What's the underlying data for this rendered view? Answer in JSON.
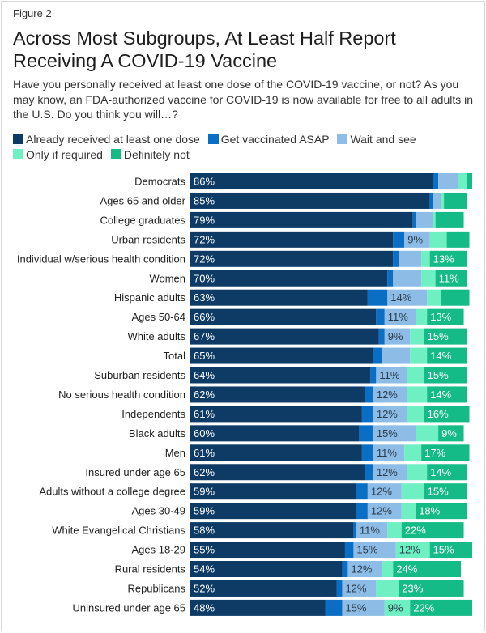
{
  "figure_label": "Figure 2",
  "chart_data": {
    "type": "bar",
    "orientation": "horizontal",
    "stacked": true,
    "title": "Across Most Subgroups, At Least Half Report Receiving A COVID-19 Vaccine",
    "subtitle": "Have you personally received at least one dose of the COVID-19 vaccine, or not? As you may know, an FDA-authorized vaccine for COVID-19 is now available for free to all adults in the U.S. Do you think you will…?",
    "legend_placement": "top",
    "xlim": [
      0,
      100
    ],
    "grid": false,
    "categories": [
      "Democrats",
      "Ages 65 and older",
      "College graduates",
      "Urban residents",
      "Individual w/serious health condition",
      "Women",
      "Hispanic adults",
      "Ages 50-64",
      "White adults",
      "Total",
      "Suburban residents",
      "No serious health condition",
      "Independents",
      "Black adults",
      "Men",
      "Insured under age 65",
      "Adults without a college degree",
      "Ages 30-49",
      "White Evangelical Christians",
      "Ages 18-29",
      "Rural residents",
      "Republicans",
      "Uninsured under age 65"
    ],
    "series": [
      {
        "name": "Already received at least one dose",
        "color": "#0d3b66",
        "values": [
          86,
          85,
          79,
          72,
          72,
          70,
          63,
          66,
          67,
          65,
          64,
          62,
          61,
          60,
          61,
          62,
          59,
          59,
          58,
          55,
          54,
          52,
          48
        ],
        "labels": [
          "86%",
          "85%",
          "79%",
          "72%",
          "72%",
          "70%",
          "63%",
          "66%",
          "67%",
          "65%",
          "64%",
          "62%",
          "61%",
          "60%",
          "61%",
          "62%",
          "59%",
          "59%",
          "58%",
          "55%",
          "54%",
          "52%",
          "48%"
        ]
      },
      {
        "name": "Get vaccinated ASAP",
        "color": "#0a6ec4",
        "values": [
          2,
          1,
          1,
          4,
          2,
          2,
          7,
          3,
          2,
          3,
          2,
          3,
          4,
          5,
          4,
          3,
          4,
          4,
          1,
          3,
          2,
          2,
          6
        ],
        "labels": [
          "",
          "",
          "",
          "",
          "",
          "",
          "",
          "",
          "",
          "",
          "",
          "",
          "",
          "",
          "",
          "",
          "",
          "",
          "",
          "",
          "",
          "",
          ""
        ]
      },
      {
        "name": "Wait and see",
        "color": "#8dbde6",
        "values": [
          7,
          3,
          6,
          9,
          8,
          10,
          14,
          11,
          9,
          10,
          11,
          12,
          12,
          15,
          11,
          12,
          12,
          12,
          11,
          15,
          12,
          12,
          15
        ],
        "labels": [
          "",
          "",
          "",
          "9%",
          "",
          "",
          "14%",
          "11%",
          "9%",
          "",
          "11%",
          "12%",
          "12%",
          "15%",
          "11%",
          "12%",
          "12%",
          "12%",
          "11%",
          "15%",
          "12%",
          "12%",
          "15%"
        ]
      },
      {
        "name": "Only if required",
        "color": "#6ff0c2",
        "values": [
          3,
          1,
          1,
          6,
          3,
          5,
          5,
          4,
          5,
          6,
          6,
          7,
          6,
          8,
          6,
          7,
          8,
          5,
          5,
          12,
          4,
          8,
          9
        ],
        "labels": [
          "",
          "",
          "",
          "",
          "",
          "",
          "",
          "",
          "",
          "",
          "",
          "",
          "",
          "",
          "",
          "",
          "",
          "",
          "",
          "12%",
          "",
          "",
          "9%"
        ]
      },
      {
        "name": "Definitely not",
        "color": "#14bb86",
        "values": [
          2,
          8,
          10,
          8,
          13,
          11,
          10,
          13,
          15,
          14,
          15,
          14,
          16,
          9,
          17,
          14,
          15,
          18,
          22,
          15,
          24,
          23,
          22
        ],
        "labels": [
          "",
          "",
          "",
          "",
          "13%",
          "11%",
          "",
          "13%",
          "15%",
          "14%",
          "15%",
          "14%",
          "16%",
          "9%",
          "17%",
          "14%",
          "15%",
          "18%",
          "22%",
          "15%",
          "24%",
          "23%",
          "22%"
        ]
      }
    ]
  }
}
